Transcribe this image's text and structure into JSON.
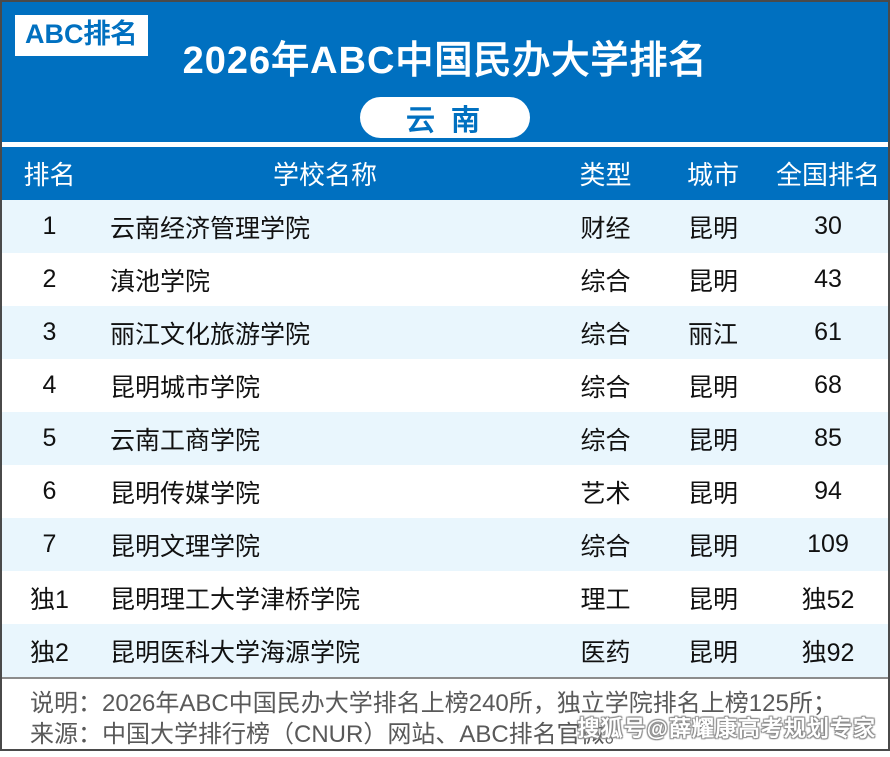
{
  "brand_badge": "ABC排名",
  "banner": {
    "title": "2026年ABC中国民办大学排名",
    "region": "云 南"
  },
  "table": {
    "columns": {
      "rank": "排名",
      "school": "学校名称",
      "type": "类型",
      "city": "城市",
      "national_rank": "全国排名"
    },
    "rows": [
      {
        "rank": "1",
        "school": "云南经济管理学院",
        "type": "财经",
        "city": "昆明",
        "national_rank": "30"
      },
      {
        "rank": "2",
        "school": "滇池学院",
        "type": "综合",
        "city": "昆明",
        "national_rank": "43"
      },
      {
        "rank": "3",
        "school": "丽江文化旅游学院",
        "type": "综合",
        "city": "丽江",
        "national_rank": "61"
      },
      {
        "rank": "4",
        "school": "昆明城市学院",
        "type": "综合",
        "city": "昆明",
        "national_rank": "68"
      },
      {
        "rank": "5",
        "school": "云南工商学院",
        "type": "综合",
        "city": "昆明",
        "national_rank": "85"
      },
      {
        "rank": "6",
        "school": "昆明传媒学院",
        "type": "艺术",
        "city": "昆明",
        "national_rank": "94"
      },
      {
        "rank": "7",
        "school": "昆明文理学院",
        "type": "综合",
        "city": "昆明",
        "national_rank": "109"
      },
      {
        "rank": "独1",
        "school": "昆明理工大学津桥学院",
        "type": "理工",
        "city": "昆明",
        "national_rank": "独52"
      },
      {
        "rank": "独2",
        "school": "昆明医科大学海源学院",
        "type": "医药",
        "city": "昆明",
        "national_rank": "独92"
      }
    ]
  },
  "footer": {
    "note": "说明：2026年ABC中国民办大学排名上榜240所，独立学院排名上榜125所；",
    "source": "来源：中国大学排行榜（CNUR）网站、ABC排名官微。",
    "watermark": "搜狐号@薛耀康高考规划专家"
  },
  "colors": {
    "primary_blue": "#0070C0",
    "row_alt_blue": "#E9F6FD",
    "note_gray": "#595959"
  }
}
